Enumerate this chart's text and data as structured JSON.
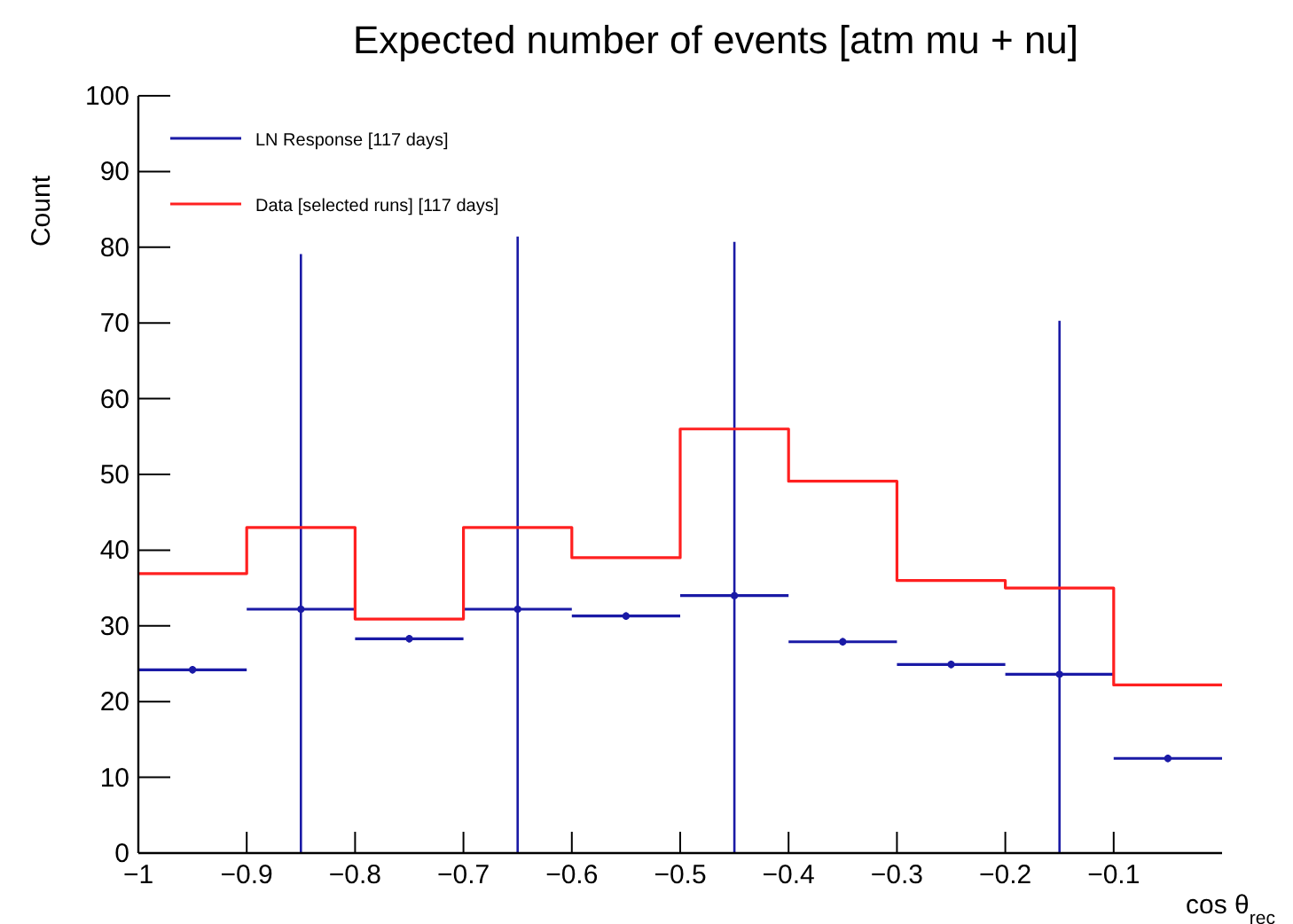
{
  "chart_data": {
    "type": "histogram",
    "title": "Expected number of events [atm mu + nu]",
    "xlabel": "cos θ$_{rec}$",
    "ylabel": "Count",
    "bins": [
      -1,
      -0.9,
      -0.8,
      -0.7,
      -0.6,
      -0.5,
      -0.4,
      -0.3,
      -0.2,
      -0.1,
      0
    ],
    "series": [
      {
        "name": "LN Response [117 days]",
        "type": "scatter",
        "color": "#1a1aa6",
        "x": [
          -0.95,
          -0.85,
          -0.75,
          -0.65,
          -0.55,
          -0.45,
          -0.35,
          -0.25,
          -0.15,
          -0.05
        ],
        "values": [
          24.2,
          32.2,
          28.3,
          32.2,
          31.3,
          34,
          27.9,
          24.9,
          23.6,
          12.5
        ],
        "xerrors": [
          0.05,
          0.05,
          0.05,
          0.05,
          0.05,
          0.05,
          0.05,
          0.05,
          0.05,
          0.05
        ],
        "errors": [
          0.5,
          [
            0,
            79.1
          ],
          0.5,
          [
            0,
            81.4
          ],
          0.5,
          [
            0,
            80.7
          ],
          0.5,
          0.5,
          [
            0,
            70.3
          ],
          0.5
        ]
      },
      {
        "name": "Data [selected runs] [117 days]",
        "type": "histogram",
        "color": "#ff2020",
        "values": [
          36.9,
          43,
          30.9,
          43,
          39,
          56,
          49.1,
          36,
          35,
          22.2
        ]
      }
    ],
    "xlim": [
      -1,
      0
    ],
    "xticks": [
      -1,
      -0.9,
      -0.8,
      -0.7,
      -0.6,
      -0.5,
      -0.4,
      -0.3,
      -0.2,
      -0.1
    ],
    "ylim": [
      0,
      100
    ],
    "yticks": [
      0,
      10,
      20,
      30,
      40,
      50,
      60,
      70,
      80,
      90,
      100
    ],
    "legend": "top left"
  }
}
